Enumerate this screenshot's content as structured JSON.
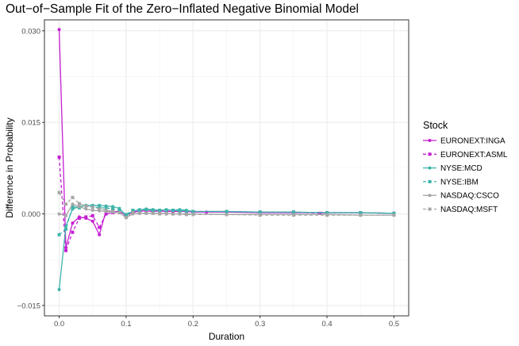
{
  "chart_data": {
    "type": "line",
    "title": "Out−of−Sample Fit of the Zero−Inflated Negative Binomial Model",
    "xlabel": "Duration",
    "ylabel": "Difference in Probability",
    "xlim": [
      -0.022,
      0.522
    ],
    "ylim": [
      -0.0167,
      0.0318
    ],
    "x_ticks": [
      0.0,
      0.1,
      0.2,
      0.3,
      0.4,
      0.5
    ],
    "x_tick_labels": [
      "0.0",
      "0.1",
      "0.2",
      "0.3",
      "0.4",
      "0.5"
    ],
    "y_ticks": [
      -0.015,
      0.0,
      0.015,
      0.03
    ],
    "y_tick_labels": [
      "−0.015",
      "0.000",
      "0.015",
      "0.030"
    ],
    "grid": true,
    "legend": {
      "title": "Stock",
      "position": "right",
      "entries": [
        "EURONEXT:INGA",
        "EURONEXT:ASML",
        "NYSE:MCD",
        "NYSE:IBM",
        "NASDAQ:CSCO",
        "NASDAQ:MSFT"
      ]
    },
    "series": [
      {
        "name": "EURONEXT:INGA",
        "color": "#C51ED2",
        "dashed": false,
        "marker": "circle",
        "x": [
          0,
          0.01,
          0.02,
          0.03,
          0.04,
          0.05,
          0.06,
          0.07,
          0.08,
          0.09,
          0.1,
          0.11,
          0.12,
          0.13,
          0.14,
          0.15,
          0.16,
          0.17,
          0.18,
          0.19,
          0.2,
          0.22,
          0.25,
          0.3,
          0.35,
          0.4,
          0.45,
          0.5
        ],
        "y": [
          0.0302,
          -0.0055,
          -0.0015,
          -0.0005,
          -0.0007,
          -0.0012,
          -0.0034,
          0.0005,
          0.0004,
          0.0004,
          -0.0002,
          0.0003,
          0.0005,
          0.0005,
          0.0004,
          0.0005,
          0.0004,
          0.0004,
          0.0004,
          0.0004,
          0.0003,
          0.0003,
          0.0003,
          0.0002,
          0.0002,
          0.0002,
          0.0002,
          0.0001
        ]
      },
      {
        "name": "EURONEXT:ASML",
        "color": "#C51ED2",
        "dashed": true,
        "marker": "square",
        "x": [
          0,
          0.01,
          0.02,
          0.03,
          0.04,
          0.05,
          0.06,
          0.07,
          0.08,
          0.09,
          0.1,
          0.11,
          0.12,
          0.13,
          0.14,
          0.15,
          0.16,
          0.17,
          0.18,
          0.19,
          0.2,
          0.25,
          0.3,
          0.35,
          0.39,
          0.4,
          0.45,
          0.5
        ],
        "y": [
          0.0093,
          -0.006,
          -0.003,
          -0.0007,
          -0.0005,
          -0.0003,
          -0.0022,
          0.0,
          0.0002,
          0.0002,
          -0.0003,
          0.0003,
          0.0004,
          0.0005,
          0.0005,
          0.0005,
          0.0004,
          0.0005,
          0.0005,
          0.0004,
          0.0004,
          0.0004,
          0.0003,
          0.0003,
          0.0001,
          0.0002,
          0.0002,
          0.0001
        ]
      },
      {
        "name": "NYSE:MCD",
        "color": "#3DB4AA",
        "dashed": false,
        "marker": "circle",
        "x": [
          0,
          0.01,
          0.02,
          0.03,
          0.04,
          0.05,
          0.06,
          0.07,
          0.08,
          0.09,
          0.1,
          0.11,
          0.12,
          0.13,
          0.14,
          0.15,
          0.16,
          0.17,
          0.18,
          0.19,
          0.2,
          0.25,
          0.3,
          0.35,
          0.4,
          0.45,
          0.5
        ],
        "y": [
          -0.0124,
          -0.002,
          0.0008,
          0.0012,
          0.0014,
          0.0014,
          0.0014,
          0.0013,
          0.0012,
          0.0009,
          -0.0003,
          0.0005,
          0.0007,
          0.0008,
          0.0007,
          0.0006,
          0.0007,
          0.0006,
          0.0007,
          0.0006,
          0.0004,
          0.0004,
          0.0003,
          0.0003,
          0.0002,
          0.0002,
          0.0001
        ]
      },
      {
        "name": "NYSE:IBM",
        "color": "#3DB4AA",
        "dashed": true,
        "marker": "square",
        "x": [
          0,
          0.01,
          0.02,
          0.03,
          0.04,
          0.05,
          0.06,
          0.07,
          0.08,
          0.09,
          0.1,
          0.11,
          0.12,
          0.13,
          0.14,
          0.15,
          0.16,
          0.17,
          0.18,
          0.19,
          0.2,
          0.25,
          0.3,
          0.35,
          0.4,
          0.45,
          0.5
        ],
        "y": [
          -0.0034,
          -0.0025,
          0.0012,
          0.001,
          0.0013,
          0.0012,
          0.001,
          0.001,
          0.0008,
          0.0006,
          -0.0001,
          0.0006,
          0.0006,
          0.0007,
          0.0006,
          0.0006,
          0.0006,
          0.0006,
          0.0005,
          0.0005,
          0.0004,
          0.0004,
          0.0003,
          0.0003,
          0.0002,
          0.0002,
          0.0001
        ]
      },
      {
        "name": "NASDAQ:CSCO",
        "color": "#A6A6A6",
        "dashed": false,
        "marker": "circle",
        "x": [
          0,
          0.01,
          0.02,
          0.03,
          0.04,
          0.05,
          0.06,
          0.07,
          0.08,
          0.09,
          0.1,
          0.11,
          0.12,
          0.13,
          0.14,
          0.15,
          0.16,
          0.17,
          0.18,
          0.19,
          0.2,
          0.25,
          0.3,
          0.35,
          0.4,
          0.45,
          0.5
        ],
        "y": [
          0.0,
          -0.0003,
          0.0016,
          0.0012,
          0.0008,
          0.0006,
          0.0005,
          0.0004,
          0.0003,
          0.0002,
          -0.0006,
          0.0,
          0.0001,
          0.0001,
          0.0001,
          0.0001,
          0.0001,
          0.0,
          0.0,
          0.0,
          0.0,
          -0.0001,
          -0.0001,
          -0.0001,
          -0.0001,
          -0.0002,
          -0.0002
        ]
      },
      {
        "name": "NASDAQ:MSFT",
        "color": "#A6A6A6",
        "dashed": true,
        "marker": "square",
        "x": [
          0,
          0.01,
          0.02,
          0.03,
          0.04,
          0.05,
          0.06,
          0.07,
          0.08,
          0.09,
          0.1,
          0.11,
          0.12,
          0.13,
          0.14,
          0.15,
          0.16,
          0.17,
          0.18,
          0.19,
          0.2,
          0.25,
          0.3,
          0.35,
          0.4,
          0.45,
          0.5
        ],
        "y": [
          0.0035,
          0.0016,
          0.0027,
          0.0017,
          0.0013,
          0.0011,
          0.0008,
          0.0006,
          0.0004,
          0.0002,
          -0.0006,
          0.0002,
          0.0001,
          0.0001,
          0.0001,
          0.0,
          0.0,
          0.0,
          0.0,
          -0.0001,
          -0.0001,
          -0.0001,
          -0.0002,
          -0.0002,
          -0.0002,
          -0.0002,
          -0.0002
        ]
      }
    ]
  }
}
